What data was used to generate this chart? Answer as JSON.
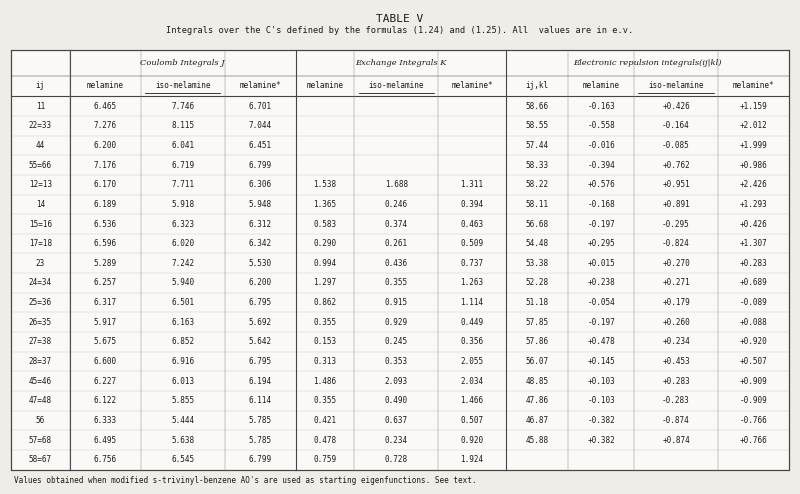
{
  "title": "TABLE V",
  "subtitle": "Integrals over the C's defined by the formulas (1.24) and (1.25). All  values are in e.v.",
  "footnote": "Values obtained when modified s-trivinyl-benzene AO's are used as starting eigenfunctions. See text.",
  "col_labels": [
    "ij",
    "melamine",
    "iso-melamine",
    "melamine*",
    "melamine",
    "iso-melamine",
    "melamine*",
    "ij,kl",
    "melamine",
    "iso-melamine",
    "melamine*"
  ],
  "span_labels": [
    {
      "text": "Coulomb Integrals J",
      "sub": "ij",
      "cols": [
        1,
        3
      ]
    },
    {
      "text": "Exchange Integrals K",
      "sub": "ij",
      "cols": [
        4,
        6
      ]
    },
    {
      "text": "Electronic repulsion integrals(ij|kl)",
      "sub": "",
      "cols": [
        7,
        10
      ]
    }
  ],
  "rows": [
    [
      "11",
      "6.465",
      "7.746",
      "6.701",
      "",
      "",
      "",
      "58.66",
      "-0.163",
      "+0.426",
      "+1.159"
    ],
    [
      "22=33",
      "7.276",
      "8.115",
      "7.044",
      "",
      "",
      "",
      "58.55",
      "-0.558",
      "-0.164",
      "+2.012"
    ],
    [
      "44",
      "6.200",
      "6.041",
      "6.451",
      "",
      "",
      "",
      "57.44",
      "-0.016",
      "-0.085",
      "+1.999"
    ],
    [
      "55=66",
      "7.176",
      "6.719",
      "6.799",
      "",
      "",
      "",
      "58.33",
      "-0.394",
      "+0.762",
      "+0.986"
    ],
    [
      "12=13",
      "6.170",
      "7.711",
      "6.306",
      "1.538",
      "1.688",
      "1.311",
      "58.22",
      "+0.576",
      "+0.951",
      "+2.426"
    ],
    [
      "14",
      "6.189",
      "5.918",
      "5.948",
      "1.365",
      "0.246",
      "0.394",
      "58.11",
      "-0.168",
      "+0.891",
      "+1.293"
    ],
    [
      "15=16",
      "6.536",
      "6.323",
      "6.312",
      "0.583",
      "0.374",
      "0.463",
      "56.68",
      "-0.197",
      "-0.295",
      "+0.426"
    ],
    [
      "17=18",
      "6.596",
      "6.020",
      "6.342",
      "0.290",
      "0.261",
      "0.509",
      "54.48",
      "+0.295",
      "-0.824",
      "+1.307"
    ],
    [
      "23",
      "5.289",
      "7.242",
      "5.530",
      "0.994",
      "0.436",
      "0.737",
      "53.38",
      "+0.015",
      "+0.270",
      "+0.283"
    ],
    [
      "24=34",
      "6.257",
      "5.940",
      "6.200",
      "1.297",
      "0.355",
      "1.263",
      "52.28",
      "+0.238",
      "+0.271",
      "+0.689"
    ],
    [
      "25=36",
      "6.317",
      "6.501",
      "6.795",
      "0.862",
      "0.915",
      "1.114",
      "51.18",
      "-0.054",
      "+0.179",
      "-0.089"
    ],
    [
      "26=35",
      "5.917",
      "6.163",
      "5.692",
      "0.355",
      "0.929",
      "0.449",
      "57.85",
      "-0.197",
      "+0.260",
      "+0.088"
    ],
    [
      "27=38",
      "5.675",
      "6.852",
      "5.642",
      "0.153",
      "0.245",
      "0.356",
      "57.86",
      "+0.478",
      "+0.234",
      "+0.920"
    ],
    [
      "28=37",
      "6.600",
      "6.916",
      "6.795",
      "0.313",
      "0.353",
      "2.055",
      "56.07",
      "+0.145",
      "+0.453",
      "+0.507"
    ],
    [
      "45=46",
      "6.227",
      "6.013",
      "6.194",
      "1.486",
      "2.093",
      "2.034",
      "48.85",
      "+0.103",
      "+0.283",
      "+0.909"
    ],
    [
      "47=48",
      "6.122",
      "5.855",
      "6.114",
      "0.355",
      "0.490",
      "1.466",
      "47.86",
      "-0.103",
      "-0.283",
      "-0.909"
    ],
    [
      "56",
      "6.333",
      "5.444",
      "5.785",
      "0.421",
      "0.637",
      "0.507",
      "46.87",
      "-0.382",
      "-0.874",
      "-0.766"
    ],
    [
      "57=68",
      "6.495",
      "5.638",
      "5.785",
      "0.478",
      "0.234",
      "0.920",
      "45.88",
      "+0.382",
      "+0.874",
      "+0.766"
    ],
    [
      "58=67",
      "6.756",
      "6.545",
      "6.799",
      "0.759",
      "0.728",
      "1.924",
      "",
      "",
      "",
      ""
    ]
  ],
  "background_color": "#f0ede8",
  "table_bg": "#faf9f6",
  "text_color": "#1a1a1a",
  "border_color": "#444444",
  "underline_cols": [
    2,
    5,
    9
  ]
}
